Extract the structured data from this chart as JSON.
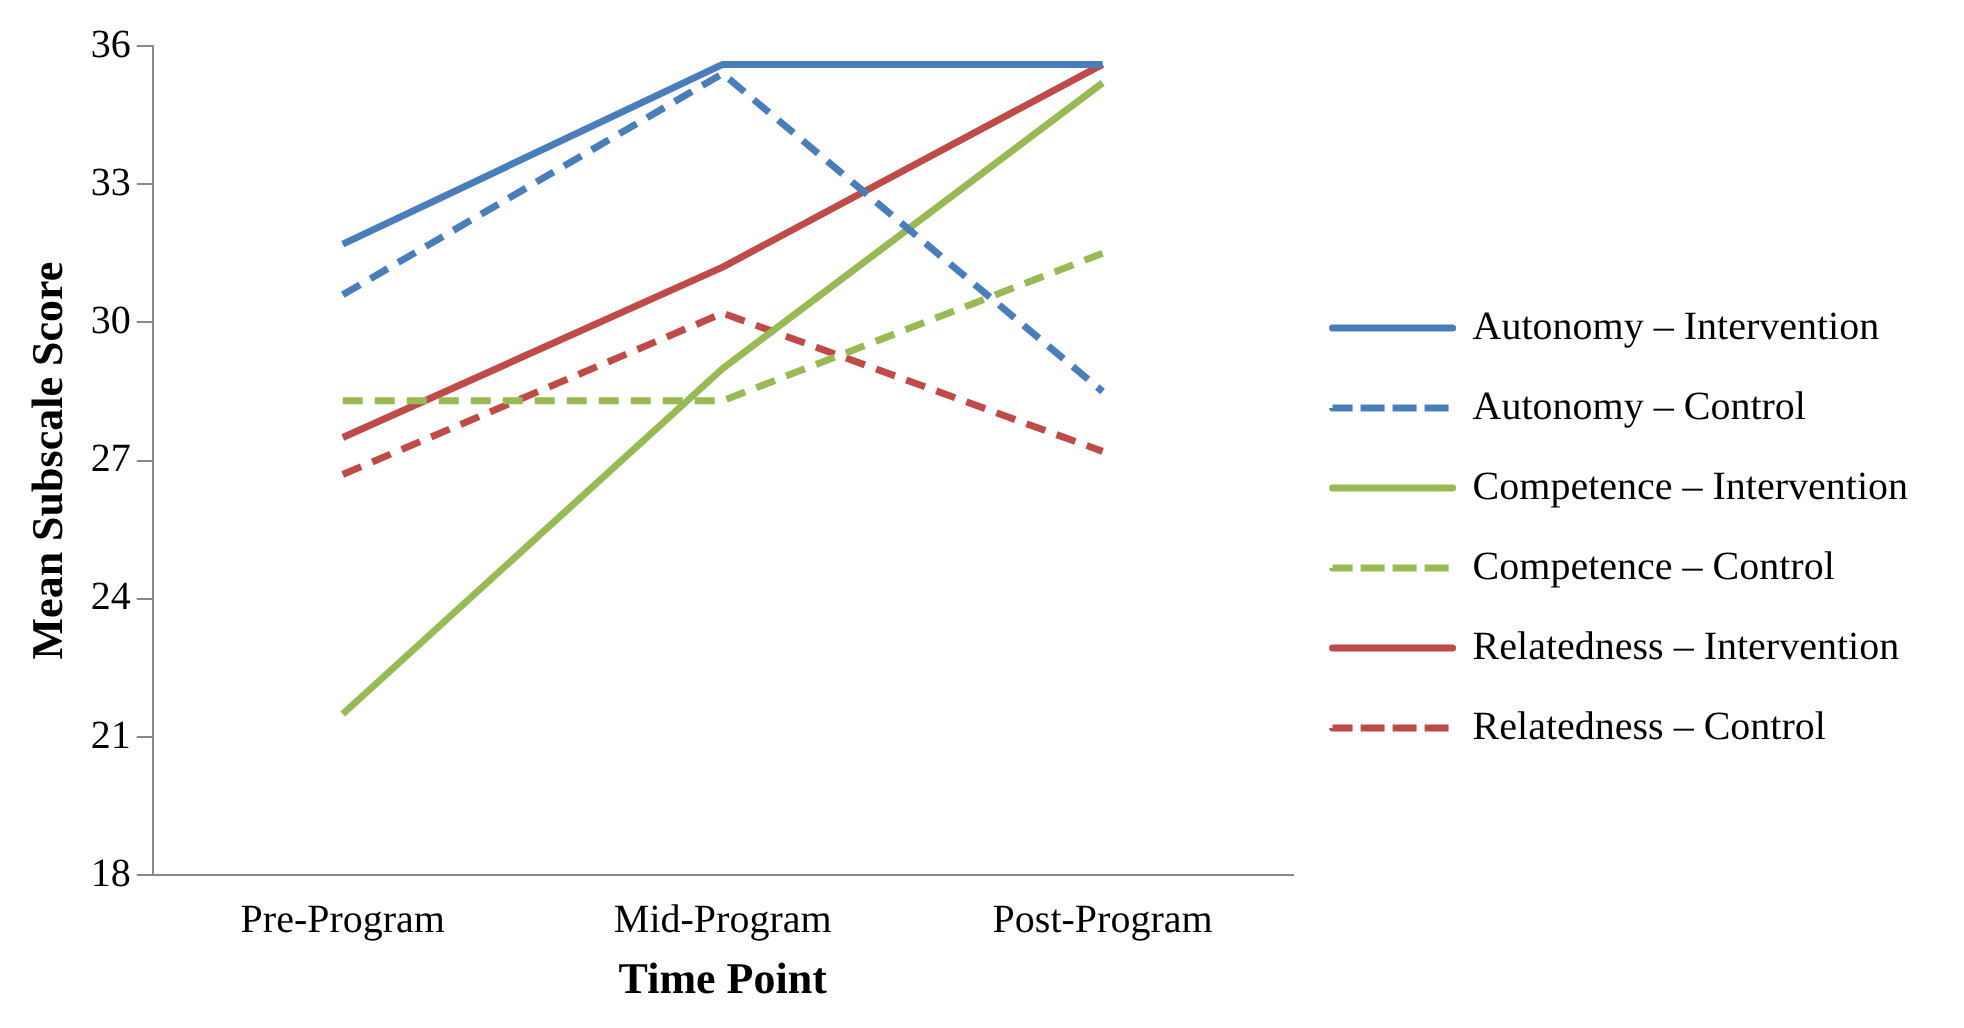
{
  "chart_data": {
    "type": "line",
    "xlabel": "Time Point",
    "ylabel": "Mean Subscale Score",
    "categories": [
      "Pre-Program",
      "Mid-Program",
      "Post-Program"
    ],
    "series": [
      {
        "name": "Autonomy – Intervention",
        "color": "#4a7ebb",
        "values": [
          31.7,
          35.6,
          35.6
        ],
        "line_style": "solid"
      },
      {
        "name": "Autonomy – Control",
        "color": "#4a7ebb",
        "values": [
          30.6,
          35.4,
          28.5
        ],
        "line_style": "dashed"
      },
      {
        "name": "Competence – Intervention",
        "color": "#98b954",
        "values": [
          21.5,
          29.0,
          35.2
        ],
        "line_style": "solid"
      },
      {
        "name": "Competence – Control",
        "color": "#98b954",
        "values": [
          28.3,
          28.3,
          31.5
        ],
        "line_style": "dashed"
      },
      {
        "name": "Relatedness – Intervention",
        "color": "#be4b48",
        "values": [
          27.5,
          31.2,
          35.6
        ],
        "line_style": "solid"
      },
      {
        "name": "Relatedness – Control",
        "color": "#be4b48",
        "values": [
          26.7,
          30.2,
          27.2
        ],
        "line_style": "dashed"
      }
    ],
    "ylim": [
      18,
      36
    ],
    "yticks": [
      18,
      21,
      24,
      27,
      30,
      33,
      36
    ],
    "grid": false,
    "legend": "right",
    "marker": "none"
  }
}
